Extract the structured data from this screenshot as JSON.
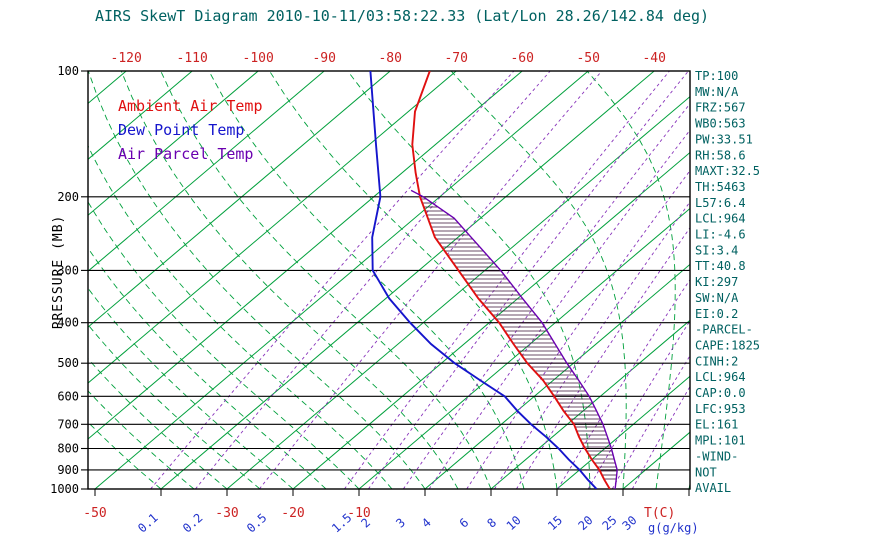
{
  "title": "AIRS SkewT Diagram 2010-10-11/03:58:22.33 (Lat/Lon 28.26/142.84 deg)",
  "legend": {
    "ambient": "Ambient Air Temp",
    "dewpoint": "Dew Point Temp",
    "parcel": "Air Parcel Temp"
  },
  "axes": {
    "pressure_label": "PRESSURE (MB)",
    "pressure_ticks_mb": [
      100,
      200,
      300,
      400,
      500,
      600,
      700,
      800,
      900,
      1000
    ],
    "top_temp_ticks_c": [
      -120,
      -110,
      -100,
      -90,
      -80,
      -70,
      -60,
      -50,
      -40
    ],
    "bottom_temp_ticks_c": [
      -50,
      -30,
      -20,
      -10
    ],
    "temp_unit_label": "T(C)",
    "mixing_unit_label": "g(g/kg)",
    "mixing_ratio_ticks_g_kg": [
      0.1,
      0.2,
      0.5,
      1.5,
      2,
      3,
      4,
      6,
      8,
      10,
      15,
      20,
      25,
      30
    ]
  },
  "stats": [
    "TP:100",
    "MW:N/A",
    "FRZ:567",
    "WB0:563",
    "PW:33.51",
    "RH:58.6",
    "MAXT:32.5",
    "TH:5463",
    "L57:6.4",
    "LCL:964",
    "LI:-4.6",
    "SI:3.4",
    "TT:40.8",
    "KI:297",
    "SW:N/A",
    "EI:0.2",
    "-PARCEL-",
    "CAPE:1825",
    "CINH:2",
    "LCL:964",
    "CAP:0.0",
    "LFC:953",
    "EL:161",
    "MPL:101",
    "-WIND-",
    "NOT",
    "AVAIL"
  ],
  "colors": {
    "heading": "#006161",
    "ambient": "#e01010",
    "dewpoint": "#1515cc",
    "parcel": "#6a00b0",
    "isotherm": "#00a03c",
    "moist_adiabat": "#00a03c",
    "mixing_ratio": "#8833bb",
    "isobar": "#000000",
    "hatch": "#3a1136",
    "temp_label": "#cc2222",
    "mixing_label": "#2233cc"
  },
  "chart_data": {
    "type": "line",
    "subtype": "skew-t-log-p",
    "title": "AIRS SkewT Diagram 2010-10-11/03:58:22.33 (Lat/Lon 28.26/142.84 deg)",
    "x_axis": {
      "label": "T(C)",
      "type": "skewed-temperature-celsius",
      "top_ticks_c": [
        -120,
        -110,
        -100,
        -90,
        -80,
        -70,
        -60,
        -50,
        -40
      ],
      "bottom_ticks_c": [
        -50,
        -30,
        -20,
        -10
      ]
    },
    "y_axis": {
      "label": "PRESSURE (MB)",
      "type": "log-pressure",
      "range_mb": [
        100,
        1000
      ],
      "ticks_mb": [
        100,
        200,
        300,
        400,
        500,
        600,
        700,
        800,
        900,
        1000
      ]
    },
    "grid": {
      "isotherms_c": [
        -120,
        -110,
        -100,
        -90,
        -80,
        -70,
        -60,
        -50,
        -40,
        -30,
        -20,
        -10,
        0,
        10,
        20,
        30,
        40
      ],
      "moist_adiabat_start_temps_c": [
        -40,
        -35,
        -30,
        -25,
        -20,
        -15,
        -10,
        -5,
        0,
        5,
        10,
        15,
        20,
        25,
        30,
        35,
        40,
        45,
        50,
        55
      ],
      "mixing_ratio_lines_g_kg": [
        0.1,
        0.2,
        0.5,
        1.5,
        2,
        3,
        4,
        6,
        8,
        10,
        15,
        20,
        25,
        30
      ]
    },
    "series": [
      {
        "name": "Ambient Air Temp",
        "role": "ambient",
        "color": "#e01010",
        "points_mb_c": [
          [
            1000,
            28
          ],
          [
            950,
            25.5
          ],
          [
            900,
            23
          ],
          [
            850,
            20
          ],
          [
            800,
            17
          ],
          [
            750,
            14
          ],
          [
            700,
            11
          ],
          [
            650,
            7
          ],
          [
            600,
            3
          ],
          [
            550,
            -1.5
          ],
          [
            500,
            -7
          ],
          [
            450,
            -12.5
          ],
          [
            400,
            -18.5
          ],
          [
            350,
            -26
          ],
          [
            300,
            -34
          ],
          [
            250,
            -43.5
          ],
          [
            200,
            -53
          ],
          [
            175,
            -58
          ],
          [
            150,
            -63.5
          ],
          [
            125,
            -69
          ],
          [
            100,
            -74
          ]
        ]
      },
      {
        "name": "Dew Point Temp",
        "role": "dewpoint",
        "color": "#1515cc",
        "points_mb_c": [
          [
            1000,
            26
          ],
          [
            950,
            23
          ],
          [
            900,
            20
          ],
          [
            850,
            16.5
          ],
          [
            800,
            13
          ],
          [
            750,
            9
          ],
          [
            700,
            4.5
          ],
          [
            650,
            0
          ],
          [
            600,
            -4.5
          ],
          [
            550,
            -11
          ],
          [
            500,
            -18
          ],
          [
            450,
            -25
          ],
          [
            400,
            -32
          ],
          [
            350,
            -39.5
          ],
          [
            300,
            -47
          ],
          [
            250,
            -53
          ],
          [
            200,
            -59
          ],
          [
            150,
            -69
          ],
          [
            100,
            -83
          ]
        ]
      },
      {
        "name": "Air Parcel Temp",
        "role": "parcel",
        "color": "#6a00b0",
        "points_mb_c": [
          [
            1000,
            28.8
          ],
          [
            950,
            27.3
          ],
          [
            900,
            25.7
          ],
          [
            850,
            23.4
          ],
          [
            800,
            21
          ],
          [
            750,
            18.3
          ],
          [
            700,
            15.4
          ],
          [
            650,
            12
          ],
          [
            600,
            8.3
          ],
          [
            550,
            3.9
          ],
          [
            500,
            -1
          ],
          [
            450,
            -6.2
          ],
          [
            400,
            -12
          ],
          [
            350,
            -19.3
          ],
          [
            300,
            -27.6
          ],
          [
            250,
            -38
          ],
          [
            225,
            -44
          ],
          [
            200,
            -52.5
          ],
          [
            193,
            -55.5
          ]
        ]
      }
    ],
    "hatch_region": {
      "between": [
        "ambient",
        "parcel"
      ],
      "from_mb": 950,
      "to_mb": 197
    },
    "derived_indices": {
      "CAPE": 1825,
      "CINH": 2,
      "LCL": 964,
      "LFC": 953,
      "EL": 161,
      "MPL": 101,
      "LI": -4.6,
      "SI": 3.4,
      "TT": 40.8,
      "KI": 297,
      "PW": 33.51,
      "RH": 58.6,
      "MAXT": 32.5
    }
  }
}
